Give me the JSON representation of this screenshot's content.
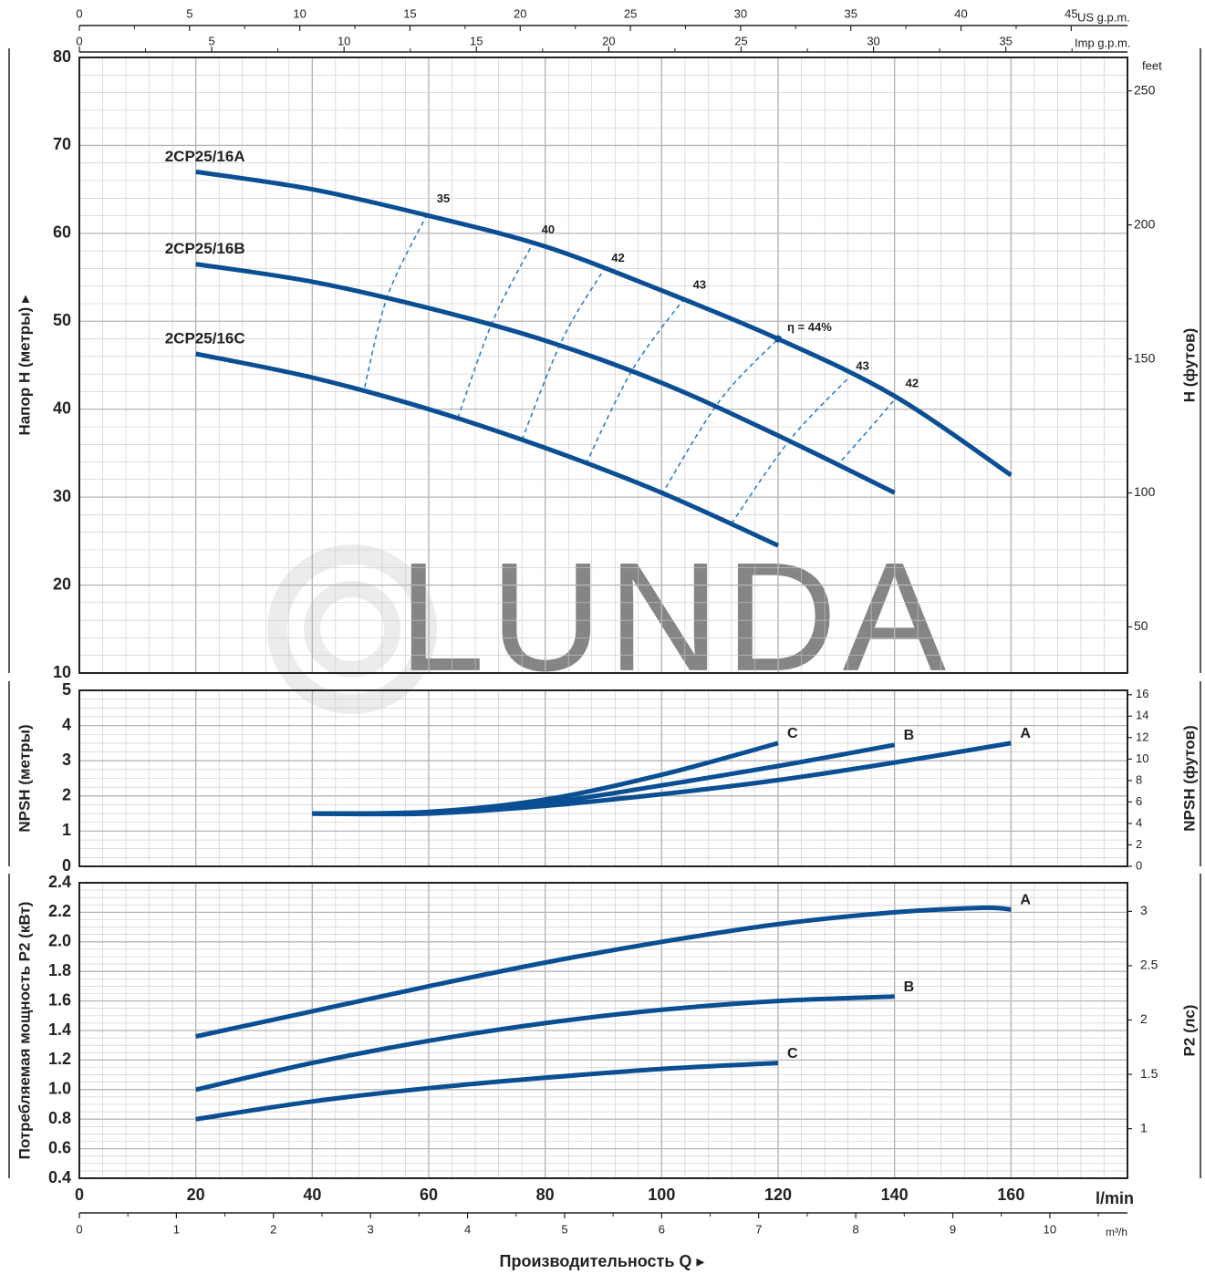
{
  "colors": {
    "curve": "#0a4f93",
    "efficiency": "#2a7fc9",
    "grid": "#c8c8c8",
    "frame": "#222222",
    "watermark": "#dddddd"
  },
  "watermark": "LUNDA",
  "axes": {
    "us_gpm_label": "US g.p.m.",
    "us_gpm_ticks": [
      "0",
      "5",
      "10",
      "15",
      "20",
      "25",
      "30",
      "35",
      "40",
      "45"
    ],
    "imp_gpm_label": "Imp g.p.m.",
    "imp_gpm_ticks": [
      "0",
      "5",
      "10",
      "15",
      "20",
      "25",
      "30",
      "35"
    ],
    "lmin_label": "l/min",
    "lmin_ticks": [
      "0",
      "20",
      "40",
      "60",
      "80",
      "100",
      "120",
      "140",
      "160"
    ],
    "m3h_label": "m³/h",
    "m3h_ticks": [
      "0",
      "1",
      "2",
      "3",
      "4",
      "5",
      "6",
      "7",
      "8",
      "9",
      "10"
    ],
    "q_label": "Производительность Q",
    "q_arrow": "▸"
  },
  "chart_data": [
    {
      "type": "line",
      "name": "head",
      "ylabel": "Напор H (метры)",
      "ylabel_arrow": "▸",
      "ylabel_right": "H (футов)",
      "feet_label": "feet",
      "ylim": [
        10,
        80
      ],
      "xlim": [
        0,
        180
      ],
      "yticks": [
        "10",
        "20",
        "30",
        "40",
        "50",
        "60",
        "70",
        "80"
      ],
      "feet_ticks": [
        "50",
        "100",
        "150",
        "200",
        "250"
      ],
      "series": [
        {
          "name": "2CP25/16A",
          "x": [
            20,
            40,
            60,
            80,
            100,
            120,
            140,
            160
          ],
          "y": [
            67,
            65,
            62,
            58.5,
            53.5,
            48,
            41.5,
            32.5
          ]
        },
        {
          "name": "2CP25/16B",
          "x": [
            20,
            40,
            60,
            80,
            100,
            120,
            140
          ],
          "y": [
            56.5,
            54.5,
            51.5,
            47.8,
            43,
            37,
            30.5
          ]
        },
        {
          "name": "2CP25/16C",
          "x": [
            20,
            40,
            60,
            80,
            100,
            120
          ],
          "y": [
            46.3,
            43.6,
            40,
            35.6,
            30.5,
            24.5
          ]
        }
      ],
      "efficiency_lines": [
        {
          "label": "35",
          "points": [
            [
              49,
              42.5
            ],
            [
              53,
              53
            ],
            [
              60,
              62.5
            ]
          ]
        },
        {
          "label": "40",
          "points": [
            [
              65,
              39
            ],
            [
              71,
              50
            ],
            [
              78,
              59
            ]
          ]
        },
        {
          "label": "42",
          "points": [
            [
              76,
              36.5
            ],
            [
              83,
              48
            ],
            [
              90,
              55.8
            ]
          ]
        },
        {
          "label": "43",
          "points": [
            [
              87,
              33.8
            ],
            [
              95,
              44.5
            ],
            [
              104,
              52.7
            ]
          ]
        },
        {
          "label": "η = 44%",
          "points": [
            [
              100,
              30.3
            ],
            [
              110,
              41
            ],
            [
              120,
              48
            ]
          ]
        },
        {
          "label": "43",
          "points": [
            [
              112,
              27
            ],
            [
              122,
              36.5
            ],
            [
              132,
              43.5
            ]
          ]
        },
        {
          "label": "42",
          "points": [
            [
              130,
              33.5
            ],
            [
              136,
              38
            ],
            [
              140.5,
              41.5
            ]
          ]
        }
      ]
    },
    {
      "type": "line",
      "name": "npsh",
      "ylabel": "NPSH (метры)",
      "ylabel_right": "NPSH (футов)",
      "ylim": [
        0,
        5
      ],
      "yticks": [
        "0",
        "1",
        "2",
        "3",
        "4",
        "5"
      ],
      "feet_ticks": [
        "0",
        "2",
        "4",
        "6",
        "8",
        "10",
        "12",
        "14",
        "16"
      ],
      "series": [
        {
          "name": "C",
          "x": [
            40,
            60,
            80,
            100,
            120
          ],
          "y": [
            1.5,
            1.55,
            1.9,
            2.6,
            3.5
          ]
        },
        {
          "name": "B",
          "x": [
            40,
            60,
            80,
            100,
            120,
            140
          ],
          "y": [
            1.5,
            1.52,
            1.8,
            2.3,
            2.85,
            3.45
          ]
        },
        {
          "name": "A",
          "x": [
            40,
            60,
            80,
            100,
            120,
            140,
            160
          ],
          "y": [
            1.5,
            1.5,
            1.72,
            2.05,
            2.45,
            2.95,
            3.5
          ]
        }
      ]
    },
    {
      "type": "line",
      "name": "power",
      "ylabel": "Потребляемая мощность P2 (кВт)",
      "ylabel_right": "P2 (лс)",
      "ylim": [
        0.4,
        2.4
      ],
      "yticks": [
        "0.4",
        "0.6",
        "0.8",
        "1.0",
        "1.2",
        "1.4",
        "1.6",
        "1.8",
        "2.0",
        "2.2",
        "2.4"
      ],
      "hp_ticks": [
        "1",
        "1.5",
        "2",
        "2.5",
        "3"
      ],
      "series": [
        {
          "name": "A",
          "x": [
            20,
            40,
            60,
            80,
            100,
            120,
            140,
            155,
            160
          ],
          "y": [
            1.36,
            1.53,
            1.7,
            1.86,
            2.0,
            2.12,
            2.2,
            2.23,
            2.22
          ]
        },
        {
          "name": "B",
          "x": [
            20,
            40,
            60,
            80,
            100,
            120,
            140
          ],
          "y": [
            1.0,
            1.18,
            1.33,
            1.45,
            1.54,
            1.6,
            1.63
          ]
        },
        {
          "name": "C",
          "x": [
            20,
            40,
            60,
            80,
            100,
            120
          ],
          "y": [
            0.8,
            0.92,
            1.01,
            1.08,
            1.14,
            1.18
          ]
        }
      ]
    }
  ]
}
